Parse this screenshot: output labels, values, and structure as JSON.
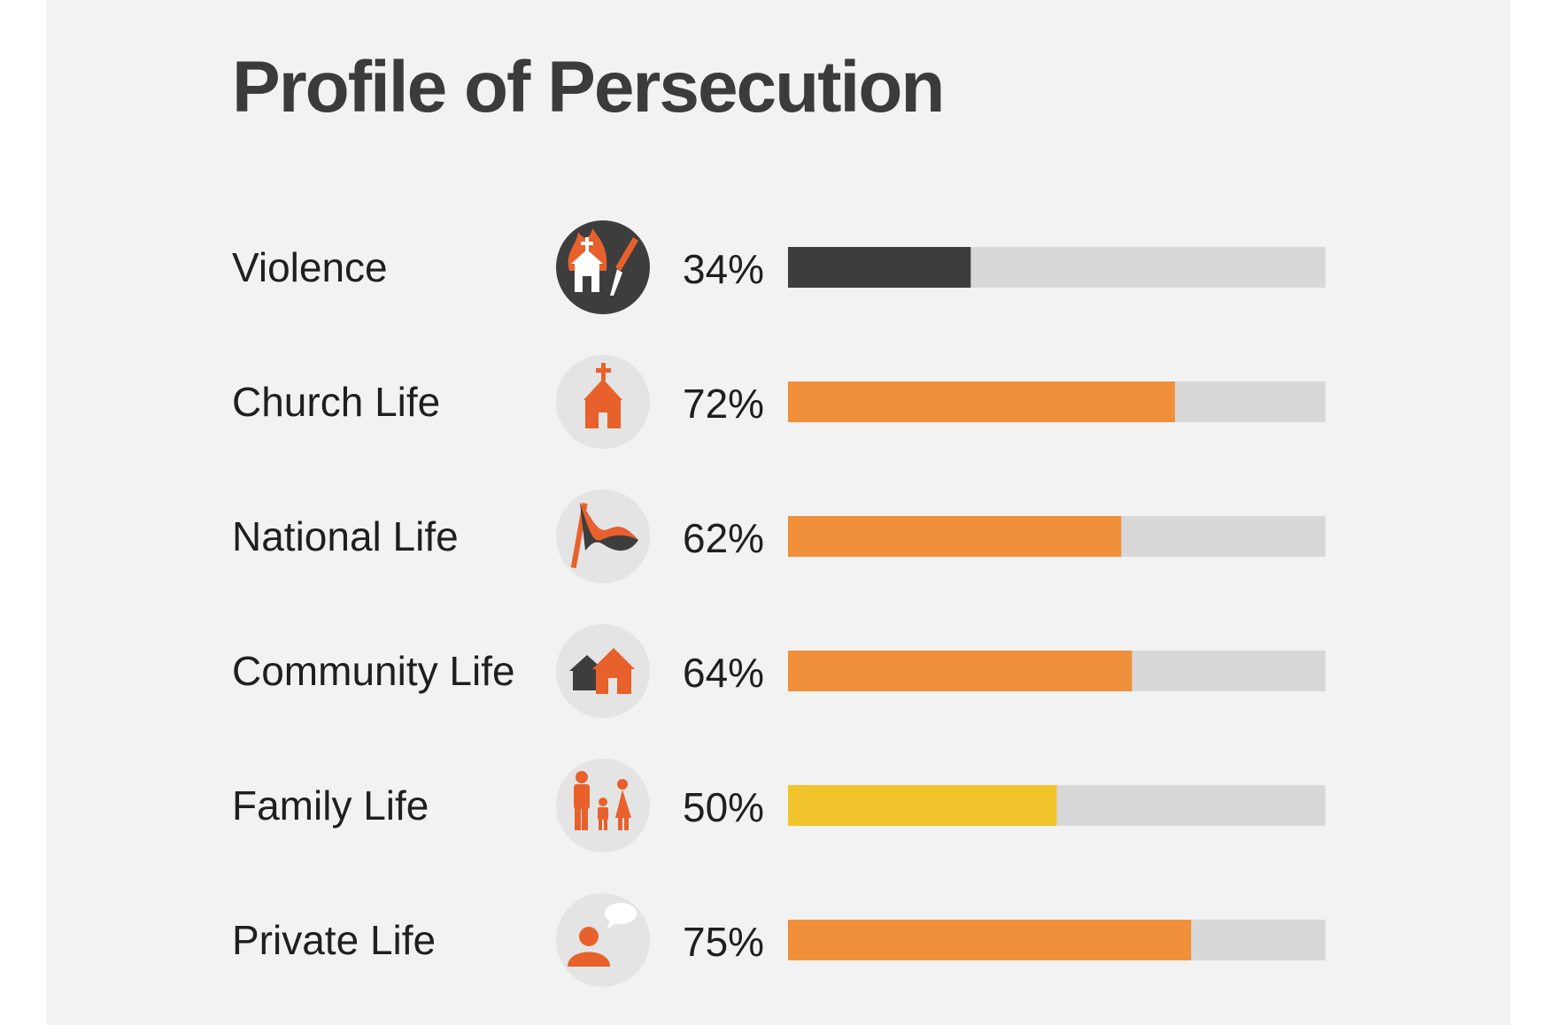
{
  "chart_data": {
    "type": "bar",
    "title": "Profile of Persecution",
    "xlim": [
      0,
      100
    ],
    "grid": false,
    "legend": "none",
    "categories": [
      "Violence",
      "Church Life",
      "National Life",
      "Community Life",
      "Family Life",
      "Private Life"
    ],
    "values": [
      34,
      72,
      62,
      64,
      50,
      75
    ],
    "value_labels": [
      "34%",
      "72%",
      "62%",
      "64%",
      "50%",
      "75%"
    ],
    "icons": [
      "burning-church-dagger-icon",
      "church-icon",
      "flag-icon",
      "houses-icon",
      "family-icon",
      "person-speech-icon"
    ],
    "bar_colors": [
      "#3d3d3d",
      "#f0903a",
      "#f0903a",
      "#f0903a",
      "#f2c42c",
      "#f0903a"
    ],
    "track_color": "#d8d8d8"
  },
  "colors": {
    "panel_background": "#f2f2f2",
    "icon_circle": "#e4e4e4",
    "icon_circle_dark": "#3d3d3d",
    "accent_orange": "#f0903a",
    "icon_orange": "#e8612c",
    "accent_yellow": "#f2c42c",
    "text_dark": "#1f1f1f"
  }
}
